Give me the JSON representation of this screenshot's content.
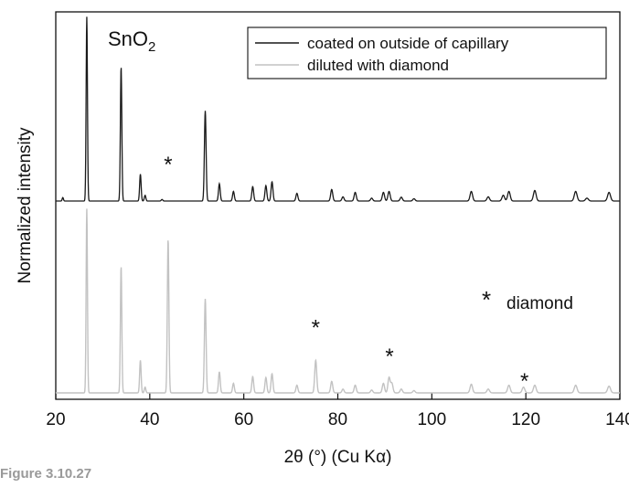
{
  "chart_data": {
    "type": "line",
    "title": "",
    "xlabel": "2θ (°) (Cu Kα)",
    "ylabel": "Normalized intensity",
    "xlim": [
      20,
      140
    ],
    "x_ticks": [
      20,
      40,
      60,
      80,
      100,
      120,
      140
    ],
    "y_ticks": [],
    "grid": false,
    "legend_placement": "top-right",
    "series": [
      {
        "name": "coated on outside of capillary",
        "color": "#1a1a1a",
        "baseline": 1.0,
        "peaks": [
          {
            "x": 21.5,
            "h": 0.018
          },
          {
            "x": 26.6,
            "h": 0.96
          },
          {
            "x": 33.9,
            "h": 0.7
          },
          {
            "x": 38.0,
            "h": 0.14
          },
          {
            "x": 39.0,
            "h": 0.03
          },
          {
            "x": 42.6,
            "h": 0.008
          },
          {
            "x": 51.8,
            "h": 0.47
          },
          {
            "x": 54.8,
            "h": 0.09
          },
          {
            "x": 57.8,
            "h": 0.05
          },
          {
            "x": 61.9,
            "h": 0.075
          },
          {
            "x": 64.7,
            "h": 0.08
          },
          {
            "x": 66.0,
            "h": 0.1
          },
          {
            "x": 71.3,
            "h": 0.04
          },
          {
            "x": 78.7,
            "h": 0.06
          },
          {
            "x": 81.1,
            "h": 0.022
          },
          {
            "x": 83.7,
            "h": 0.045
          },
          {
            "x": 87.2,
            "h": 0.015
          },
          {
            "x": 89.7,
            "h": 0.045
          },
          {
            "x": 90.9,
            "h": 0.05
          },
          {
            "x": 93.5,
            "h": 0.02
          },
          {
            "x": 96.2,
            "h": 0.012
          },
          {
            "x": 108.4,
            "h": 0.05
          },
          {
            "x": 112.0,
            "h": 0.022
          },
          {
            "x": 115.2,
            "h": 0.03
          },
          {
            "x": 116.4,
            "h": 0.05
          },
          {
            "x": 121.9,
            "h": 0.055
          },
          {
            "x": 130.6,
            "h": 0.05
          },
          {
            "x": 133.0,
            "h": 0.015
          },
          {
            "x": 137.7,
            "h": 0.045
          }
        ]
      },
      {
        "name": "diluted with diamond",
        "color": "#c2c2c2",
        "baseline": 0.0,
        "peaks": [
          {
            "x": 26.6,
            "h": 0.96
          },
          {
            "x": 33.9,
            "h": 0.66
          },
          {
            "x": 38.0,
            "h": 0.17
          },
          {
            "x": 39.0,
            "h": 0.03
          },
          {
            "x": 43.9,
            "h": 0.8
          },
          {
            "x": 51.8,
            "h": 0.49
          },
          {
            "x": 54.8,
            "h": 0.11
          },
          {
            "x": 57.8,
            "h": 0.05
          },
          {
            "x": 61.9,
            "h": 0.085
          },
          {
            "x": 64.7,
            "h": 0.08
          },
          {
            "x": 66.0,
            "h": 0.1
          },
          {
            "x": 71.3,
            "h": 0.04
          },
          {
            "x": 75.3,
            "h": 0.17
          },
          {
            "x": 78.7,
            "h": 0.06
          },
          {
            "x": 81.1,
            "h": 0.02
          },
          {
            "x": 83.7,
            "h": 0.04
          },
          {
            "x": 87.2,
            "h": 0.015
          },
          {
            "x": 89.7,
            "h": 0.05
          },
          {
            "x": 90.9,
            "h": 0.08
          },
          {
            "x": 91.5,
            "h": 0.05
          },
          {
            "x": 93.5,
            "h": 0.02
          },
          {
            "x": 96.2,
            "h": 0.012
          },
          {
            "x": 108.4,
            "h": 0.045
          },
          {
            "x": 112.0,
            "h": 0.02
          },
          {
            "x": 116.4,
            "h": 0.04
          },
          {
            "x": 119.5,
            "h": 0.03
          },
          {
            "x": 121.9,
            "h": 0.04
          },
          {
            "x": 130.6,
            "h": 0.04
          },
          {
            "x": 137.7,
            "h": 0.035
          }
        ]
      }
    ],
    "annotations": {
      "sample_label": "SnO2",
      "marker_symbol": "*",
      "marker_legend_text": "diamond",
      "diamond_peak_markers": [
        {
          "x": 43.9,
          "y": 1.22
        },
        {
          "x": 75.3,
          "y": 0.37
        },
        {
          "x": 91.0,
          "y": 0.22
        },
        {
          "x": 119.7,
          "y": 0.09
        }
      ]
    }
  },
  "caption": "Figure 3.10.27"
}
